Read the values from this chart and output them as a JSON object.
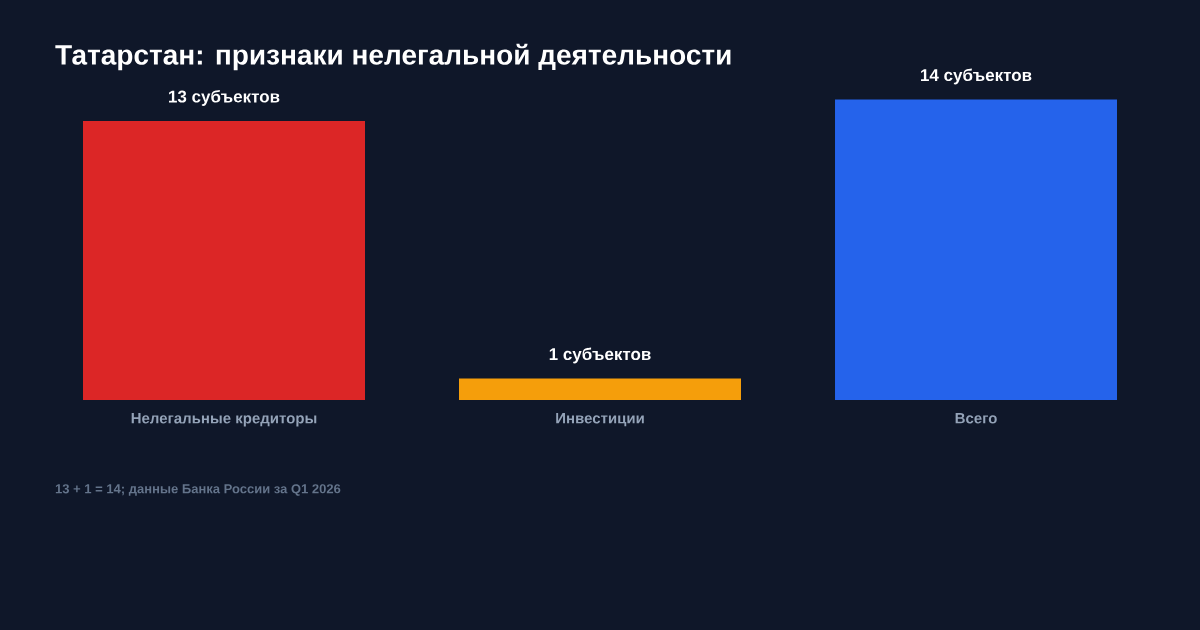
{
  "chart_data": {
    "type": "bar",
    "title": "Татарстан: признаки нелегальной деятельности",
    "categories": [
      "Нелегальные кредиторы",
      "Инвестиции",
      "Всего"
    ],
    "values": [
      13,
      1,
      14
    ],
    "colors": [
      "#dc2626",
      "#f59e0b",
      "#2563eb"
    ],
    "value_labels": [
      "13 субъектов",
      "1 субъектов",
      "14 субъектов"
    ],
    "annotations": [
      "13 + 1 = 14; данные Банка России за Q1 2026"
    ]
  }
}
